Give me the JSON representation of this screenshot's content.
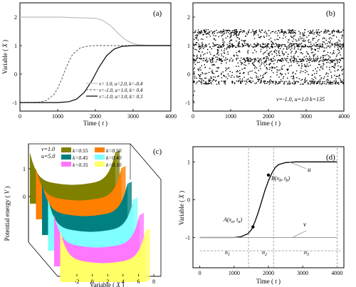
{
  "chart_data": [
    {
      "panel": "(a)",
      "type": "line",
      "xlabel": "Time ( t )",
      "ylabel": "Variable ( X )",
      "xlim": [
        0,
        4000
      ],
      "ylim": [
        -1.3,
        2.5
      ],
      "xticks": [
        0,
        1000,
        2000,
        3000,
        4000
      ],
      "yticks": [
        -1,
        0,
        1,
        2
      ],
      "legend_position": "lower-right",
      "series": [
        {
          "name": "v= 1.0, u=2.0, k=-0.4",
          "style": "solid",
          "color": "#bdbdbd",
          "x": [
            0,
            1000,
            2000,
            2200,
            2400,
            2500,
            2600,
            2800,
            3000,
            3200,
            3500,
            4000
          ],
          "y": [
            2,
            2,
            1.96,
            1.88,
            1.7,
            1.57,
            1.43,
            1.2,
            1.07,
            1.02,
            1.0,
            1.0
          ]
        },
        {
          "name": "v=-1.0, u=1.0, k= 0.4",
          "style": "dashed",
          "color": "#777777",
          "x": [
            0,
            500,
            700,
            900,
            1000,
            1100,
            1200,
            1300,
            1400,
            1600,
            1800,
            2000,
            4000
          ],
          "y": [
            -1,
            -0.99,
            -0.93,
            -0.72,
            -0.5,
            -0.2,
            0.15,
            0.45,
            0.7,
            0.92,
            0.98,
            1.0,
            1.0
          ]
        },
        {
          "name": "v=-1.0, u=1.0, k= 0.3",
          "style": "solid",
          "color": "#000000",
          "x": [
            0,
            1000,
            1300,
            1500,
            1700,
            1900,
            2000,
            2100,
            2300,
            2500,
            2700,
            3000,
            3200,
            4000
          ],
          "y": [
            -1,
            -1,
            -0.97,
            -0.88,
            -0.65,
            -0.25,
            0.0,
            0.25,
            0.65,
            0.88,
            0.97,
            1.0,
            1.0,
            1.0
          ]
        }
      ]
    },
    {
      "panel": "(b)",
      "type": "scatter",
      "xlabel": "Time ( t )",
      "ylabel": "",
      "xlim": [
        0,
        4000
      ],
      "ylim": [
        -1.3,
        2.5
      ],
      "xticks": [
        0,
        1000,
        2000,
        3000,
        4000
      ],
      "yticks": [
        -1,
        0,
        1,
        2
      ],
      "annotation": "v=-1.0, u=1.0 k=135",
      "band": {
        "y_min": -0.3,
        "y_max": 1.5,
        "x_min": 0,
        "x_max": 4000
      },
      "dense_bands": [
        -0.3,
        0.5,
        1.0,
        1.5
      ]
    },
    {
      "panel": "(c)",
      "type": "area",
      "xlabel": "Variable ( X )",
      "ylabel": "Potential energy ( V )",
      "xticks": [
        -2,
        0,
        2,
        4,
        6,
        8
      ],
      "zticks": [
        0,
        1
      ],
      "legend_header": [
        "v=1.0",
        "u=5.0"
      ],
      "series": [
        {
          "name": "k=0.55",
          "color": "#808000"
        },
        {
          "name": "k=0.50",
          "color": "#ff7f00"
        },
        {
          "name": "k=0.45",
          "color": "#008080"
        },
        {
          "name": "k=0.40",
          "color": "#7fffff"
        },
        {
          "name": "k=0.35",
          "color": "#ff77ff"
        },
        {
          "name": "k=0.30",
          "color": "#ffff66"
        }
      ]
    },
    {
      "panel": "(d)",
      "type": "line",
      "xlabel": "Time ( t )",
      "ylabel": "Variable ( X )",
      "xlim": [
        -200,
        4200
      ],
      "ylim": [
        -1.8,
        1.4
      ],
      "xticks": [
        0,
        1000,
        2000,
        3000,
        4000
      ],
      "yticks": [
        -1,
        0,
        1
      ],
      "series": [
        {
          "name": "u",
          "color": "#000000",
          "x": [
            0,
            1000,
            1200,
            1400,
            1500,
            1600,
            1700,
            1800,
            1900,
            2000,
            2100,
            2200,
            2300,
            2500,
            2800,
            4000
          ],
          "y": [
            -1,
            -1,
            -0.98,
            -0.9,
            -0.8,
            -0.6,
            -0.35,
            -0.05,
            0.25,
            0.5,
            0.7,
            0.85,
            0.93,
            0.98,
            1.0,
            1.0
          ]
        },
        {
          "name": "v",
          "color": "#999999",
          "x": [
            0,
            4000
          ],
          "y": [
            -1,
            -1
          ]
        }
      ],
      "points": [
        {
          "label": "A(xa, ta)",
          "x": 1550,
          "y": -0.72
        },
        {
          "label": "B(xb, tb)",
          "x": 2000,
          "y": 0.65
        }
      ],
      "region_labels": [
        "n1",
        "n2",
        "n3"
      ],
      "vlines": [
        1420,
        2150,
        4000
      ],
      "hline": -1.35
    }
  ],
  "text": {
    "panel_a": "(a)",
    "panel_b": "(b)",
    "panel_c": "(c)",
    "panel_d": "(d)",
    "time_label_pre": "Time (",
    "time_label_var": "t",
    "time_label_post": ")",
    "var_label_pre": "Variable (",
    "var_label_var": "X",
    "var_label_post": ")",
    "pe_label_pre": "Potential energy (",
    "pe_label_var": "V",
    "pe_label_post": ")",
    "annotation_b": "v=-1.0, u=1.0 k=135",
    "legend_c_v": "v=1.0",
    "legend_c_u": "u=5.0",
    "label_u": "u",
    "label_v": "v",
    "point_a_main": "A(x",
    "point_a_sub1": "a",
    "point_a_mid": ", t",
    "point_a_sub2": "a",
    "point_a_end": ")",
    "point_b_main": "B(x",
    "point_b_sub1": "b",
    "point_b_mid": ", t",
    "point_b_sub2": "b",
    "point_b_end": ")",
    "n1_main": "n",
    "n1_sub": "1",
    "n2_main": "n",
    "n2_sub": "2",
    "n3_main": "n",
    "n3_sub": "3"
  }
}
